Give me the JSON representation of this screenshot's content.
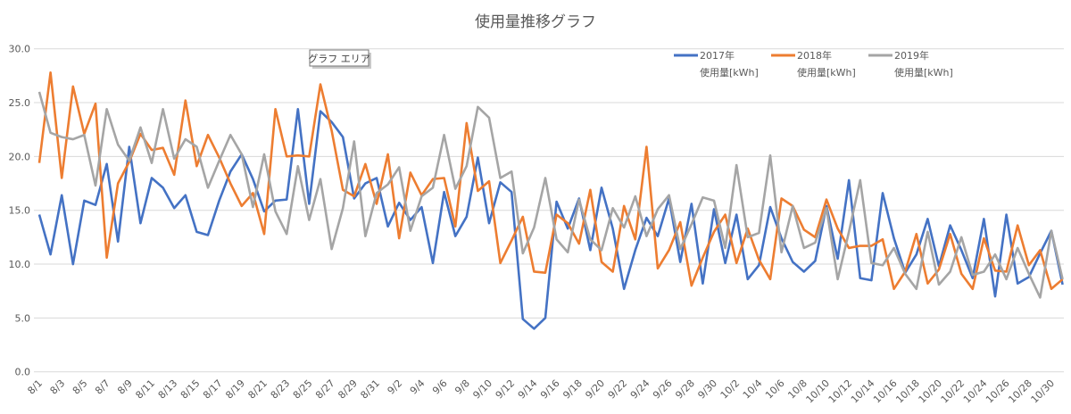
{
  "chart_data": {
    "type": "line",
    "title": "使用量推移グラフ",
    "tooltip": "グラフ エリア",
    "xlabel": "",
    "ylabel": "",
    "ylim": [
      0,
      30
    ],
    "yticks": [
      "0.0",
      "5.0",
      "10.0",
      "15.0",
      "20.0",
      "25.0",
      "30.0"
    ],
    "grid": true,
    "legend_position": "top-right",
    "x": [
      "8/1",
      "8/2",
      "8/3",
      "8/4",
      "8/5",
      "8/6",
      "8/7",
      "8/8",
      "8/9",
      "8/10",
      "8/11",
      "8/12",
      "8/13",
      "8/14",
      "8/15",
      "8/16",
      "8/17",
      "8/18",
      "8/19",
      "8/20",
      "8/21",
      "8/22",
      "8/23",
      "8/24",
      "8/25",
      "8/26",
      "8/27",
      "8/28",
      "8/29",
      "8/30",
      "8/31",
      "9/1",
      "9/2",
      "9/3",
      "9/4",
      "9/5",
      "9/6",
      "9/7",
      "9/8",
      "9/9",
      "9/10",
      "9/11",
      "9/12",
      "9/13",
      "9/14",
      "9/15",
      "9/16",
      "9/17",
      "9/18",
      "9/19",
      "9/20",
      "9/21",
      "9/22",
      "9/23",
      "9/24",
      "9/25",
      "9/26",
      "9/27",
      "9/28",
      "9/29",
      "9/30",
      "10/1",
      "10/2",
      "10/3",
      "10/4",
      "10/5",
      "10/6",
      "10/7",
      "10/8",
      "10/9",
      "10/10",
      "10/11",
      "10/12",
      "10/13",
      "10/14",
      "10/15",
      "10/16",
      "10/17",
      "10/18",
      "10/19",
      "10/20",
      "10/21",
      "10/22",
      "10/23",
      "10/24",
      "10/25",
      "10/26",
      "10/27",
      "10/28",
      "10/29",
      "10/30",
      "10/31"
    ],
    "series": [
      {
        "name": "2017年",
        "name2": "使用量[kWh]",
        "color": "#4472c4",
        "values": [
          14.6,
          10.9,
          16.4,
          10.0,
          15.9,
          15.5,
          19.3,
          12.1,
          20.9,
          13.8,
          18.0,
          17.1,
          15.2,
          16.4,
          13.0,
          12.7,
          15.9,
          18.6,
          20.2,
          17.9,
          14.9,
          15.9,
          16.0,
          24.4,
          15.6,
          24.2,
          23.2,
          21.8,
          16.1,
          17.5,
          18.0,
          13.5,
          15.7,
          14.1,
          15.3,
          10.1,
          16.7,
          12.6,
          14.4,
          19.9,
          13.8,
          17.6,
          16.7,
          4.9,
          4.0,
          5.0,
          15.8,
          13.3,
          16.1,
          11.3,
          17.1,
          13.3,
          7.7,
          11.3,
          14.3,
          12.6,
          16.1,
          10.2,
          15.6,
          8.2,
          15.1,
          10.1,
          14.6,
          8.6,
          9.9,
          15.3,
          12.4,
          10.2,
          9.3,
          10.3,
          15.4,
          10.5,
          17.8,
          8.7,
          8.5,
          16.6,
          12.4,
          9.2,
          10.9,
          14.2,
          9.8,
          13.6,
          11.3,
          8.7,
          14.2,
          7.0,
          14.6,
          8.2,
          8.8,
          11.0,
          13.1,
          8.1
        ]
      },
      {
        "name": "2018年",
        "name2": "使用量[kWh]",
        "color": "#ed7d31",
        "values": [
          19.4,
          27.8,
          18.0,
          26.5,
          22.1,
          24.9,
          10.6,
          17.5,
          19.5,
          22.1,
          20.6,
          20.8,
          18.3,
          25.2,
          19.1,
          22.0,
          19.9,
          17.5,
          15.4,
          16.6,
          12.8,
          24.4,
          20.0,
          20.1,
          20.0,
          26.7,
          22.4,
          16.9,
          16.3,
          19.3,
          15.6,
          20.2,
          12.4,
          18.5,
          16.4,
          17.9,
          18.0,
          13.5,
          23.1,
          16.8,
          17.7,
          10.1,
          12.2,
          14.4,
          9.3,
          9.2,
          14.6,
          13.8,
          11.9,
          16.9,
          10.2,
          9.3,
          15.4,
          12.3,
          20.9,
          9.6,
          11.3,
          13.9,
          8.0,
          10.6,
          13.0,
          14.6,
          10.1,
          13.3,
          10.4,
          8.6,
          16.1,
          15.4,
          13.2,
          12.5,
          16.0,
          13.3,
          11.5,
          11.7,
          11.7,
          12.3,
          7.7,
          9.3,
          12.8,
          8.2,
          9.5,
          12.8,
          9.1,
          7.7,
          12.4,
          9.4,
          9.3,
          13.6,
          9.9,
          11.3,
          7.7,
          8.6
        ]
      },
      {
        "name": "2019年",
        "name2": "使用量[kWh]",
        "color": "#a5a5a5",
        "values": [
          26.0,
          22.2,
          21.8,
          21.6,
          22.0,
          17.3,
          24.4,
          21.1,
          19.6,
          22.7,
          19.4,
          24.4,
          19.8,
          21.6,
          20.9,
          17.1,
          19.6,
          22.0,
          20.2,
          15.3,
          20.2,
          14.9,
          12.8,
          19.1,
          14.1,
          17.9,
          11.4,
          15.2,
          21.4,
          12.6,
          16.6,
          17.4,
          19.0,
          13.1,
          16.3,
          17.1,
          22.0,
          17.0,
          19.1,
          24.6,
          23.6,
          18.0,
          18.6,
          11.0,
          13.4,
          18.0,
          12.3,
          11.1,
          16.0,
          12.3,
          11.3,
          15.2,
          13.4,
          16.3,
          12.6,
          15.1,
          16.4,
          11.4,
          13.7,
          16.2,
          15.9,
          11.5,
          19.2,
          12.5,
          12.9,
          20.1,
          11.1,
          15.4,
          11.5,
          12.0,
          15.2,
          8.6,
          13.0,
          17.8,
          10.1,
          9.9,
          11.5,
          9.1,
          7.7,
          13.0,
          8.1,
          9.3,
          12.5,
          9.0,
          9.3,
          10.9,
          8.6,
          11.5,
          9.1,
          6.9,
          13.1,
          8.6
        ]
      }
    ]
  }
}
